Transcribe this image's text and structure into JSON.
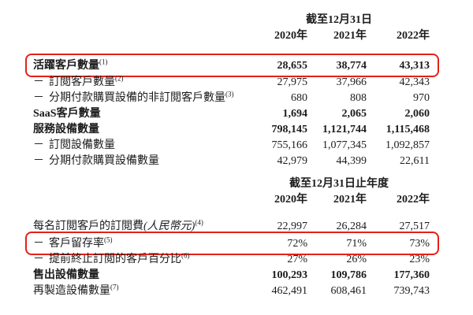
{
  "page": {
    "background": "#ffffff",
    "text_color": "#1c1c1c",
    "highlight_color": "#e32119"
  },
  "dash_char": "－",
  "sections": [
    {
      "period_header": "截至12月31日",
      "years": [
        "2020年",
        "2021年",
        "2022年"
      ],
      "rows": [
        {
          "dash": false,
          "label": "活躍客戶數量",
          "sup": "(1)",
          "italic": "",
          "values": [
            "28,655",
            "38,774",
            "43,313"
          ],
          "bold": true,
          "highlight": true
        },
        {
          "dash": true,
          "label": "訂閲客戶數量",
          "sup": "(2)",
          "italic": "",
          "values": [
            "27,975",
            "37,966",
            "42,343"
          ],
          "bold": false,
          "highlight": false
        },
        {
          "dash": true,
          "label": "分期付款購買設備的非訂閲客戶數量",
          "sup": "(3)",
          "italic": "",
          "values": [
            "680",
            "808",
            "970"
          ],
          "bold": false,
          "highlight": false
        },
        {
          "dash": false,
          "label": "SaaS客戶數量",
          "sup": "",
          "italic": "",
          "values": [
            "1,694",
            "2,065",
            "2,060"
          ],
          "bold": true,
          "highlight": false
        },
        {
          "dash": false,
          "label": "服務設備數量",
          "sup": "",
          "italic": "",
          "values": [
            "798,145",
            "1,121,744",
            "1,115,468"
          ],
          "bold": true,
          "highlight": false
        },
        {
          "dash": true,
          "label": "訂閲設備數量",
          "sup": "",
          "italic": "",
          "values": [
            "755,166",
            "1,077,345",
            "1,092,857"
          ],
          "bold": false,
          "highlight": false
        },
        {
          "dash": true,
          "label": "分期付款購買設備數量",
          "sup": "",
          "italic": "",
          "values": [
            "42,979",
            "44,399",
            "22,611"
          ],
          "bold": false,
          "highlight": false
        }
      ]
    },
    {
      "period_header": "截至12月31日止年度",
      "years": [
        "2020年",
        "2021年",
        "2022年"
      ],
      "rows": [
        {
          "dash": false,
          "label": "每名訂閲客戶的訂閲費",
          "sup": "(4)",
          "italic": "(人民幣元)",
          "values": [
            "22,997",
            "26,284",
            "27,517"
          ],
          "bold": false,
          "highlight": false
        },
        {
          "dash": true,
          "label": "客戶留存率",
          "sup": "(5)",
          "italic": "",
          "values": [
            "72%",
            "71%",
            "73%"
          ],
          "bold": false,
          "highlight": true
        },
        {
          "dash": true,
          "label": "提前終止訂閲的客戶百分比",
          "sup": "(6)",
          "italic": "",
          "values": [
            "27%",
            "26%",
            "23%"
          ],
          "bold": false,
          "highlight": false
        },
        {
          "dash": false,
          "label": "售出設備數量",
          "sup": "",
          "italic": "",
          "values": [
            "100,293",
            "109,786",
            "177,360"
          ],
          "bold": true,
          "highlight": false
        },
        {
          "dash": false,
          "label": "再製造設備數量",
          "sup": "(7)",
          "italic": "",
          "values": [
            "462,491",
            "608,461",
            "739,743"
          ],
          "bold": false,
          "highlight": false
        }
      ]
    }
  ]
}
